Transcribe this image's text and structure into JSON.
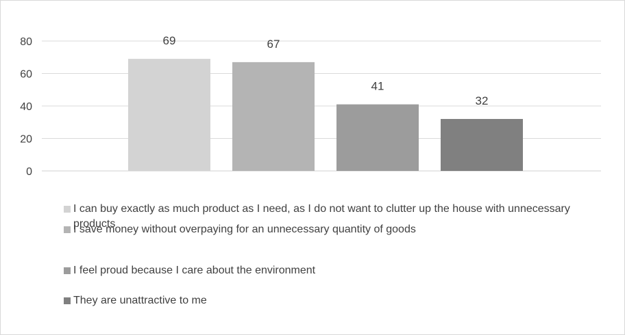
{
  "chart_data": {
    "type": "bar",
    "title": "",
    "xlabel": "",
    "ylabel": "",
    "ylim": [
      0,
      80
    ],
    "yticks": [
      0,
      20,
      40,
      60,
      80
    ],
    "grid": true,
    "legend_position": "bottom",
    "categories": [
      "I can buy exactly as much product as I need, as I do not want to clutter up the house with unnecessary products",
      "I save money without overpaying for an unnecessary quantity of goods",
      "I feel proud because I care about the environment",
      "They are unattractive to me"
    ],
    "values": [
      69,
      67,
      41,
      32
    ],
    "colors": [
      "#d3d3d3",
      "#b4b4b4",
      "#9c9c9c",
      "#808080"
    ]
  }
}
